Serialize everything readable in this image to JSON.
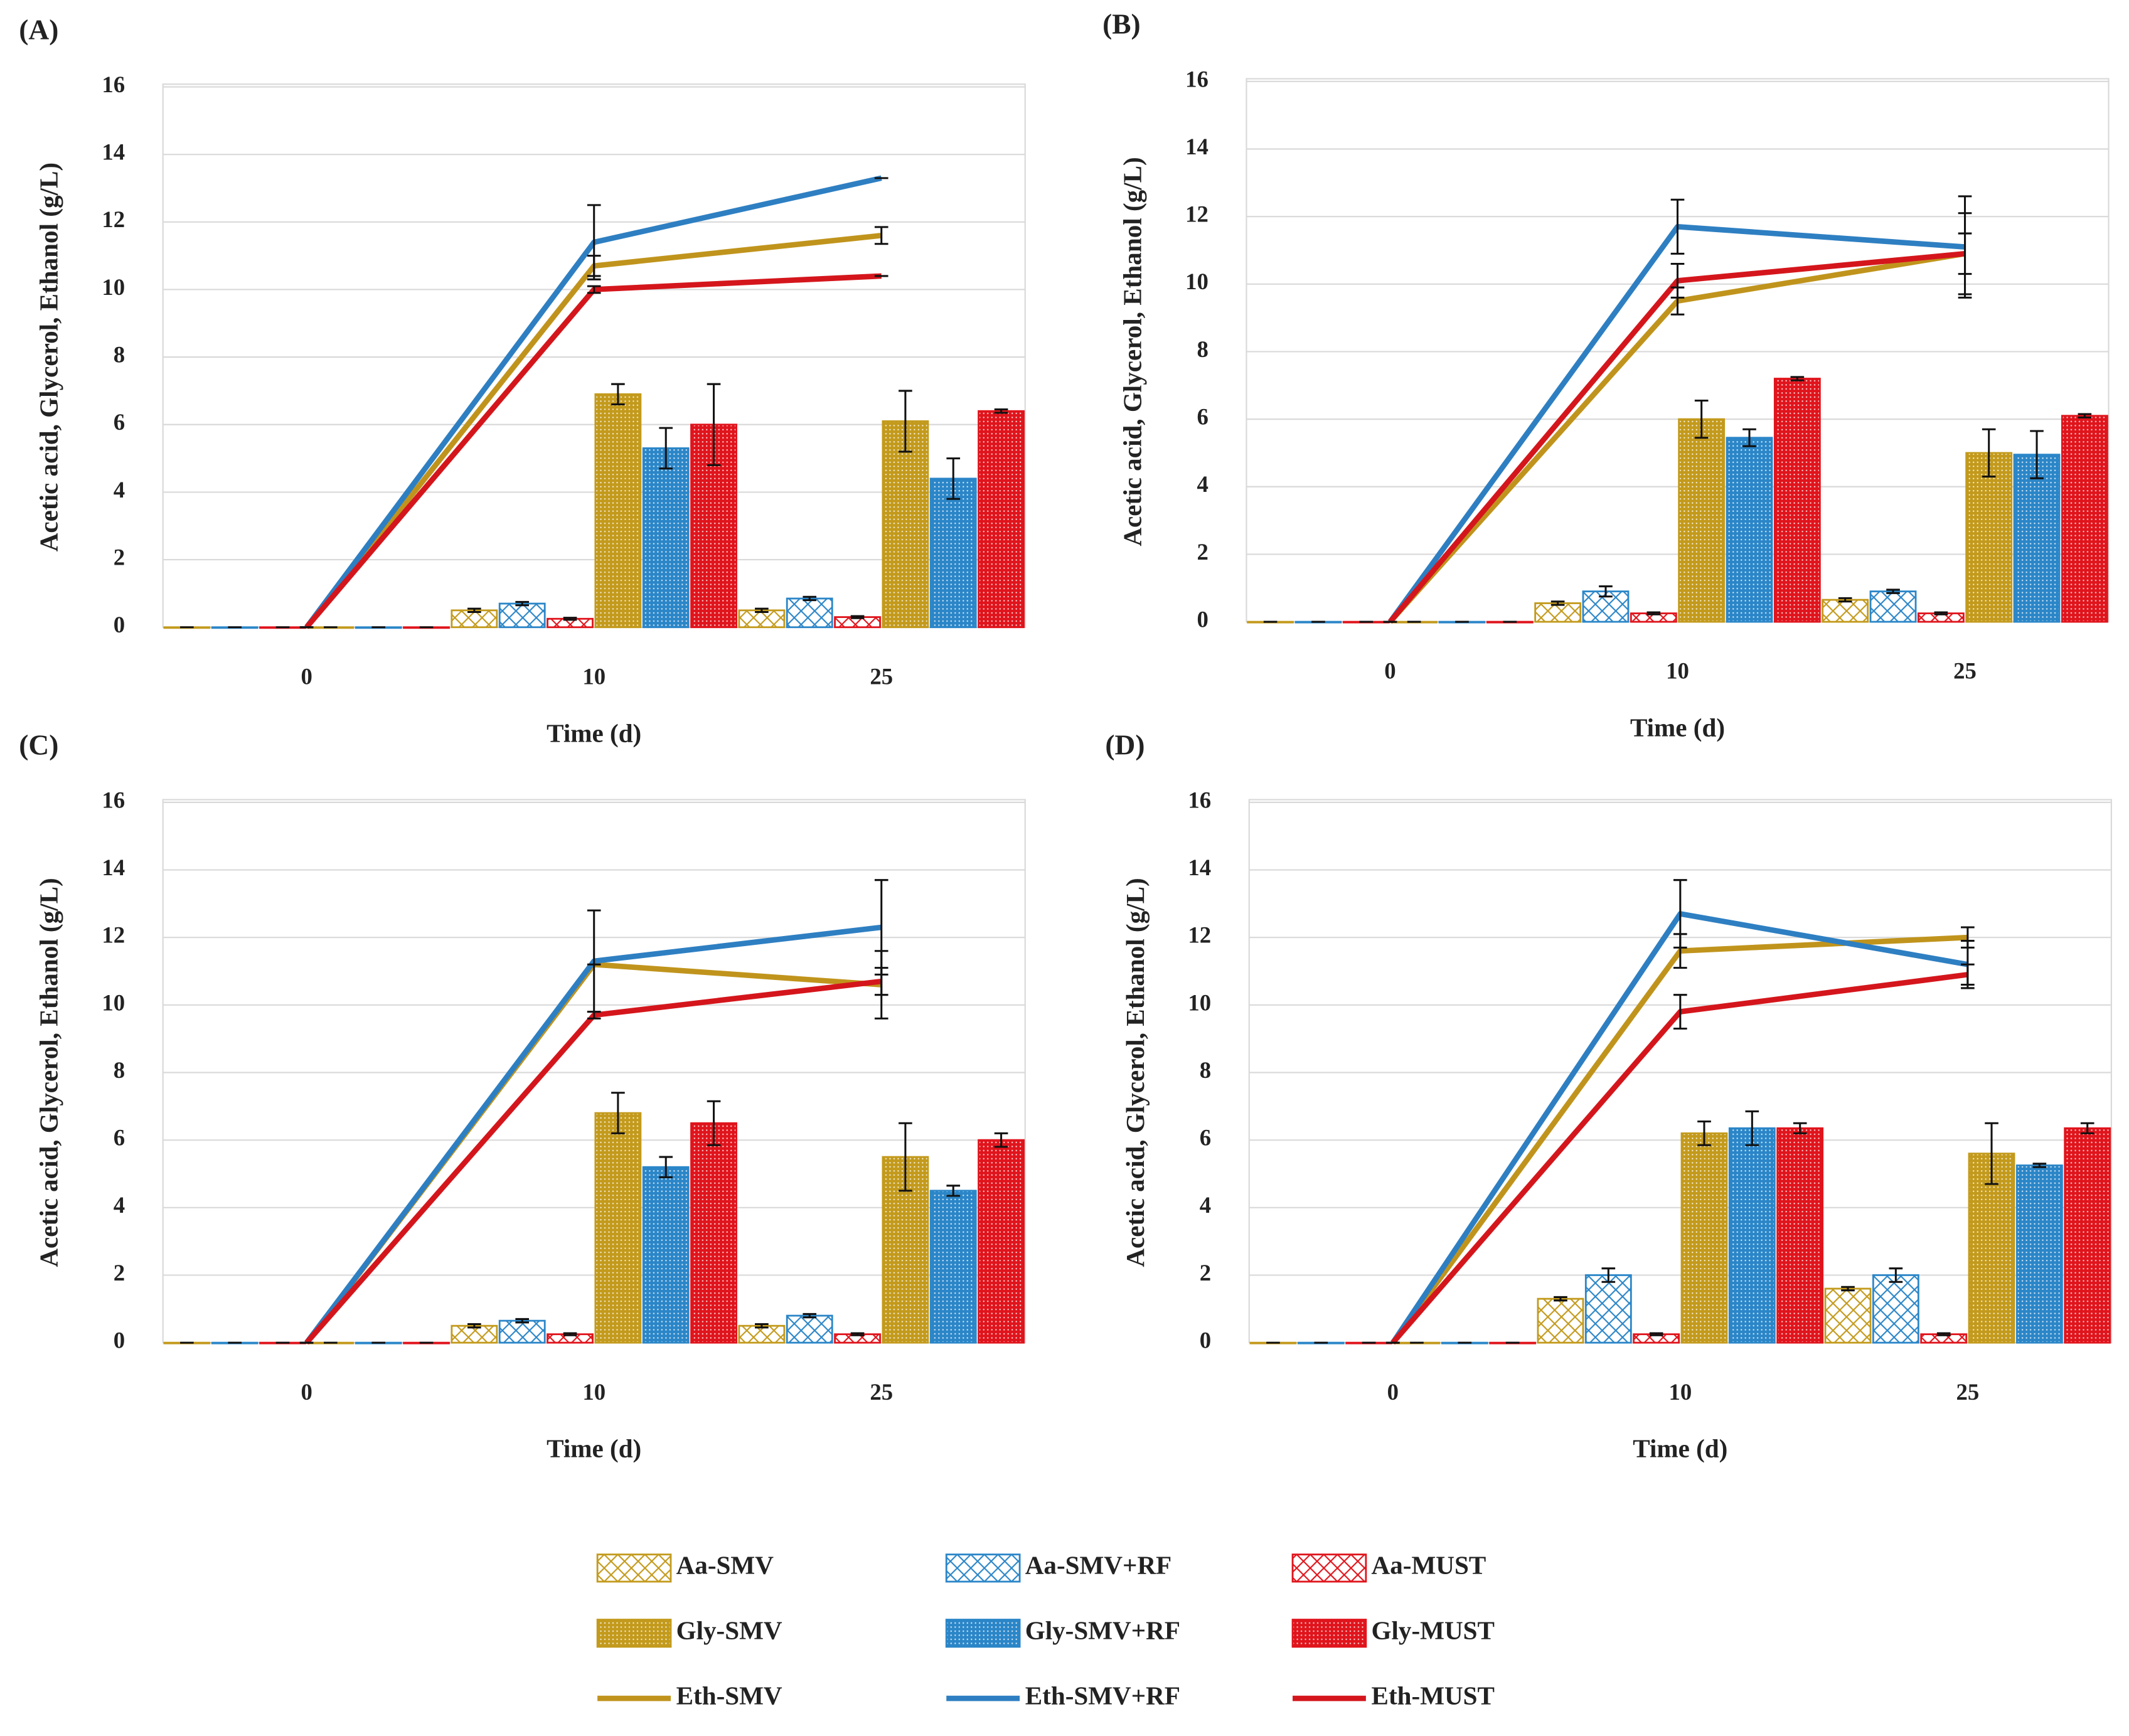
{
  "chart_data": [
    {
      "type": "bar",
      "panel_label": "(A)",
      "x_label": "Time (d)",
      "y_label": "Acetic acid,  Glycerol, Ethanol (g/L)",
      "categories": [
        "0",
        "10",
        "25"
      ],
      "ylim": [
        0,
        16
      ],
      "yticks": [
        0,
        2,
        4,
        6,
        8,
        10,
        12,
        14,
        16
      ],
      "grid": true,
      "series": [
        {
          "name": "Aa-SMV",
          "type": "bar",
          "pattern": "cross",
          "color": "#c39a1c",
          "values": [
            0,
            0.5,
            0.5
          ],
          "errors": [
            0,
            0.05,
            0.05
          ]
        },
        {
          "name": "Aa-SMV+RF",
          "type": "bar",
          "pattern": "cross",
          "color": "#2b86c8",
          "values": [
            0,
            0.7,
            0.85
          ],
          "errors": [
            0,
            0.05,
            0.05
          ]
        },
        {
          "name": "Aa-MUST",
          "type": "bar",
          "pattern": "cross",
          "color": "#e0141c",
          "values": [
            0,
            0.25,
            0.3
          ],
          "errors": [
            0,
            0.03,
            0.03
          ]
        },
        {
          "name": "Gly-SMV",
          "type": "bar",
          "pattern": "dots",
          "color": "#c39a1c",
          "values": [
            0,
            6.9,
            6.1
          ],
          "errors": [
            0,
            0.3,
            0.9
          ]
        },
        {
          "name": "Gly-SMV+RF",
          "type": "bar",
          "pattern": "dots",
          "color": "#2b86c8",
          "values": [
            0,
            5.3,
            4.4
          ],
          "errors": [
            0,
            0.6,
            0.6
          ]
        },
        {
          "name": "Gly-MUST",
          "type": "bar",
          "pattern": "dots",
          "color": "#e0141c",
          "values": [
            0,
            6.0,
            6.4
          ],
          "errors": [
            0,
            1.2,
            0.05
          ]
        },
        {
          "name": "Eth-SMV",
          "type": "line",
          "color": "#c0941c",
          "values": [
            0,
            10.7,
            11.6
          ],
          "errors": [
            0,
            0.3,
            0.25
          ]
        },
        {
          "name": "Eth-SMV+RF",
          "type": "line",
          "color": "#2e7fc2",
          "values": [
            0,
            11.4,
            13.3
          ],
          "errors": [
            0,
            1.1,
            0
          ]
        },
        {
          "name": "Eth-MUST",
          "type": "line",
          "color": "#d4161c",
          "values": [
            0,
            10.0,
            10.4
          ],
          "errors": [
            0,
            0.1,
            0
          ]
        }
      ]
    },
    {
      "type": "bar",
      "panel_label": "(B)",
      "x_label": "Time (d)",
      "y_label": "Acetic acid,  Glycerol, Ethanol (g/L)",
      "categories": [
        "0",
        "10",
        "25"
      ],
      "ylim": [
        0,
        16
      ],
      "yticks": [
        0,
        2,
        4,
        6,
        8,
        10,
        12,
        14,
        16
      ],
      "grid": true,
      "series": [
        {
          "name": "Aa-SMV",
          "type": "bar",
          "pattern": "cross",
          "color": "#c39a1c",
          "values": [
            0,
            0.55,
            0.65
          ],
          "errors": [
            0,
            0.05,
            0.05
          ]
        },
        {
          "name": "Aa-SMV+RF",
          "type": "bar",
          "pattern": "cross",
          "color": "#2b86c8",
          "values": [
            0,
            0.9,
            0.9
          ],
          "errors": [
            0,
            0.15,
            0.05
          ]
        },
        {
          "name": "Aa-MUST",
          "type": "bar",
          "pattern": "cross",
          "color": "#e0141c",
          "values": [
            0,
            0.25,
            0.25
          ],
          "errors": [
            0,
            0.03,
            0.03
          ]
        },
        {
          "name": "Gly-SMV",
          "type": "bar",
          "pattern": "dots",
          "color": "#c39a1c",
          "values": [
            0,
            6.0,
            5.0
          ],
          "errors": [
            0,
            0.55,
            0.7
          ]
        },
        {
          "name": "Gly-SMV+RF",
          "type": "bar",
          "pattern": "dots",
          "color": "#2b86c8",
          "values": [
            0,
            5.45,
            4.95
          ],
          "errors": [
            0,
            0.25,
            0.7
          ]
        },
        {
          "name": "Gly-MUST",
          "type": "bar",
          "pattern": "dots",
          "color": "#e0141c",
          "values": [
            0,
            7.2,
            6.1
          ],
          "errors": [
            0,
            0.05,
            0.05
          ]
        },
        {
          "name": "Eth-SMV",
          "type": "line",
          "color": "#c0941c",
          "values": [
            0,
            9.5,
            10.9
          ],
          "errors": [
            0,
            0.4,
            1.2
          ]
        },
        {
          "name": "Eth-SMV+RF",
          "type": "line",
          "color": "#2e7fc2",
          "values": [
            0,
            11.7,
            11.1
          ],
          "errors": [
            0,
            0.8,
            1.5
          ]
        },
        {
          "name": "Eth-MUST",
          "type": "line",
          "color": "#d4161c",
          "values": [
            0,
            10.1,
            10.9
          ],
          "errors": [
            0,
            0.5,
            0.6
          ]
        }
      ]
    },
    {
      "type": "bar",
      "panel_label": "(C)",
      "x_label": "Time (d)",
      "y_label": "Acetic acid,  Glycerol, Ethanol (g/L)",
      "categories": [
        "0",
        "10",
        "25"
      ],
      "ylim": [
        0,
        16
      ],
      "yticks": [
        0,
        2,
        4,
        6,
        8,
        10,
        12,
        14,
        16
      ],
      "grid": true,
      "series": [
        {
          "name": "Aa-SMV",
          "type": "bar",
          "pattern": "cross",
          "color": "#c39a1c",
          "values": [
            0,
            0.5,
            0.5
          ],
          "errors": [
            0,
            0.05,
            0.05
          ]
        },
        {
          "name": "Aa-SMV+RF",
          "type": "bar",
          "pattern": "cross",
          "color": "#2b86c8",
          "values": [
            0,
            0.65,
            0.8
          ],
          "errors": [
            0,
            0.05,
            0.05
          ]
        },
        {
          "name": "Aa-MUST",
          "type": "bar",
          "pattern": "cross",
          "color": "#e0141c",
          "values": [
            0,
            0.25,
            0.25
          ],
          "errors": [
            0,
            0.03,
            0.03
          ]
        },
        {
          "name": "Gly-SMV",
          "type": "bar",
          "pattern": "dots",
          "color": "#c39a1c",
          "values": [
            0,
            6.8,
            5.5
          ],
          "errors": [
            0,
            0.6,
            1.0
          ]
        },
        {
          "name": "Gly-SMV+RF",
          "type": "bar",
          "pattern": "dots",
          "color": "#2b86c8",
          "values": [
            0,
            5.2,
            4.5
          ],
          "errors": [
            0,
            0.3,
            0.15
          ]
        },
        {
          "name": "Gly-MUST",
          "type": "bar",
          "pattern": "dots",
          "color": "#e0141c",
          "values": [
            0,
            6.5,
            6.0
          ],
          "errors": [
            0,
            0.65,
            0.2
          ]
        },
        {
          "name": "Eth-SMV",
          "type": "line",
          "color": "#c0941c",
          "values": [
            0,
            11.2,
            10.6
          ],
          "errors": [
            0,
            0,
            1.0
          ]
        },
        {
          "name": "Eth-SMV+RF",
          "type": "line",
          "color": "#2e7fc2",
          "values": [
            0,
            11.3,
            12.3
          ],
          "errors": [
            0,
            1.5,
            1.4
          ]
        },
        {
          "name": "Eth-MUST",
          "type": "line",
          "color": "#d4161c",
          "values": [
            0,
            9.7,
            10.7
          ],
          "errors": [
            0,
            0.1,
            0.4
          ]
        }
      ]
    },
    {
      "type": "bar",
      "panel_label": "(D)",
      "x_label": "Time (d)",
      "y_label": "Acetic acid,  Glycerol, Ethanol (g/L)",
      "categories": [
        "0",
        "10",
        "25"
      ],
      "ylim": [
        0,
        16
      ],
      "yticks": [
        0,
        2,
        4,
        6,
        8,
        10,
        12,
        14,
        16
      ],
      "grid": true,
      "series": [
        {
          "name": "Aa-SMV",
          "type": "bar",
          "pattern": "cross",
          "color": "#c39a1c",
          "values": [
            0,
            1.3,
            1.6
          ],
          "errors": [
            0,
            0.05,
            0.05
          ]
        },
        {
          "name": "Aa-SMV+RF",
          "type": "bar",
          "pattern": "cross",
          "color": "#2b86c8",
          "values": [
            0,
            2.0,
            2.0
          ],
          "errors": [
            0,
            0.2,
            0.2
          ]
        },
        {
          "name": "Aa-MUST",
          "type": "bar",
          "pattern": "cross",
          "color": "#e0141c",
          "values": [
            0,
            0.25,
            0.25
          ],
          "errors": [
            0,
            0.03,
            0.03
          ]
        },
        {
          "name": "Gly-SMV",
          "type": "bar",
          "pattern": "dots",
          "color": "#c39a1c",
          "values": [
            0,
            6.2,
            5.6
          ],
          "errors": [
            0,
            0.35,
            0.9
          ]
        },
        {
          "name": "Gly-SMV+RF",
          "type": "bar",
          "pattern": "dots",
          "color": "#2b86c8",
          "values": [
            0,
            6.35,
            5.25
          ],
          "errors": [
            0,
            0.5,
            0.05
          ]
        },
        {
          "name": "Gly-MUST",
          "type": "bar",
          "pattern": "dots",
          "color": "#e0141c",
          "values": [
            0,
            6.35,
            6.35
          ],
          "errors": [
            0,
            0.15,
            0.15
          ]
        },
        {
          "name": "Eth-SMV",
          "type": "line",
          "color": "#c0941c",
          "values": [
            0,
            11.6,
            12.0
          ],
          "errors": [
            0,
            0.5,
            0.3
          ]
        },
        {
          "name": "Eth-SMV+RF",
          "type": "line",
          "color": "#2e7fc2",
          "values": [
            0,
            12.7,
            11.2
          ],
          "errors": [
            0,
            1.0,
            0.7
          ]
        },
        {
          "name": "Eth-MUST",
          "type": "line",
          "color": "#d4161c",
          "values": [
            0,
            9.8,
            10.9
          ],
          "errors": [
            0,
            0.5,
            0.3
          ]
        }
      ]
    }
  ],
  "legend_position": "bottom"
}
